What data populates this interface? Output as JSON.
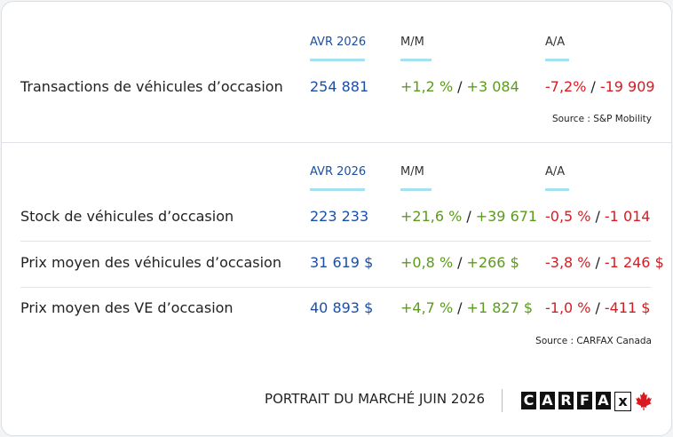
{
  "sections": [
    {
      "headers": [
        "AVR 2026",
        "M/M",
        "A/A"
      ],
      "rows": [
        {
          "label": "Transactions de véhicules d’occasion",
          "value": "254 881",
          "mm_pct": "+1,2 %",
          "mm_abs": "+3 084",
          "aa_pct": "-7,2%",
          "aa_abs": "-19 909"
        }
      ],
      "source": "Source : S&P Mobility"
    },
    {
      "headers": [
        "AVR 2026",
        "M/M",
        "A/A"
      ],
      "rows": [
        {
          "label": "Stock de véhicules d’occasion",
          "value": "223 233",
          "mm_pct": "+21,6 %",
          "mm_abs": "+39 671",
          "aa_pct": "-0,5 %",
          "aa_abs": "-1 014"
        },
        {
          "label": "Prix moyen des véhicules d’occasion",
          "value": "31 619 $",
          "mm_pct": "+0,8 %",
          "mm_abs": "+266 $",
          "aa_pct": "-3,8 %",
          "aa_abs": "-1 246 $"
        },
        {
          "label": "Prix moyen des VE d’occasion",
          "value": "40 893 $",
          "mm_pct": "+4,7 %",
          "mm_abs": "+1 827 $",
          "aa_pct": "-1,0 %",
          "aa_abs": "-411 $"
        }
      ],
      "source": "Source : CARFAX Canada"
    }
  ],
  "separator": "/",
  "footer": {
    "title": "PORTRAIT DU MARCHÉ JUIN 2026",
    "logo": [
      "C",
      "A",
      "R",
      "F",
      "A",
      "x"
    ]
  }
}
